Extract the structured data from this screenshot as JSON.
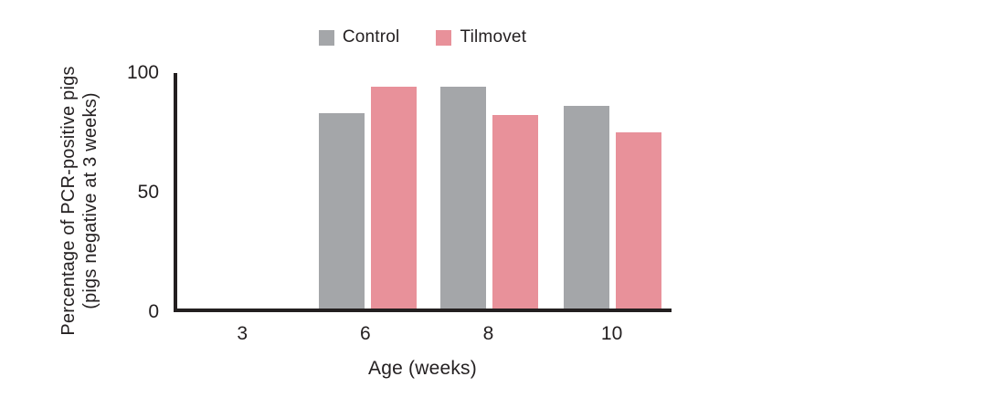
{
  "chart_data": {
    "type": "bar",
    "title": "",
    "categories": [
      "3",
      "6",
      "8",
      "10"
    ],
    "series": [
      {
        "name": "Control",
        "color": "#a4a6a9",
        "values": [
          0,
          83,
          94,
          86
        ]
      },
      {
        "name": "Tilmovet",
        "color": "#e8919a",
        "values": [
          0,
          94,
          82,
          75
        ]
      }
    ],
    "xlabel": "Age (weeks)",
    "ylabel_lines": [
      "Percentage of PCR-positive pigs",
      "(pigs negative at 3 weeks)"
    ],
    "ylim": [
      0,
      100
    ],
    "yticks": [
      "100",
      "50",
      "0"
    ],
    "grid": false,
    "legend_position": "top-center",
    "axis_color": "#231f20",
    "category_centers_pct": [
      13.8,
      38.5,
      63.2,
      88
    ]
  }
}
